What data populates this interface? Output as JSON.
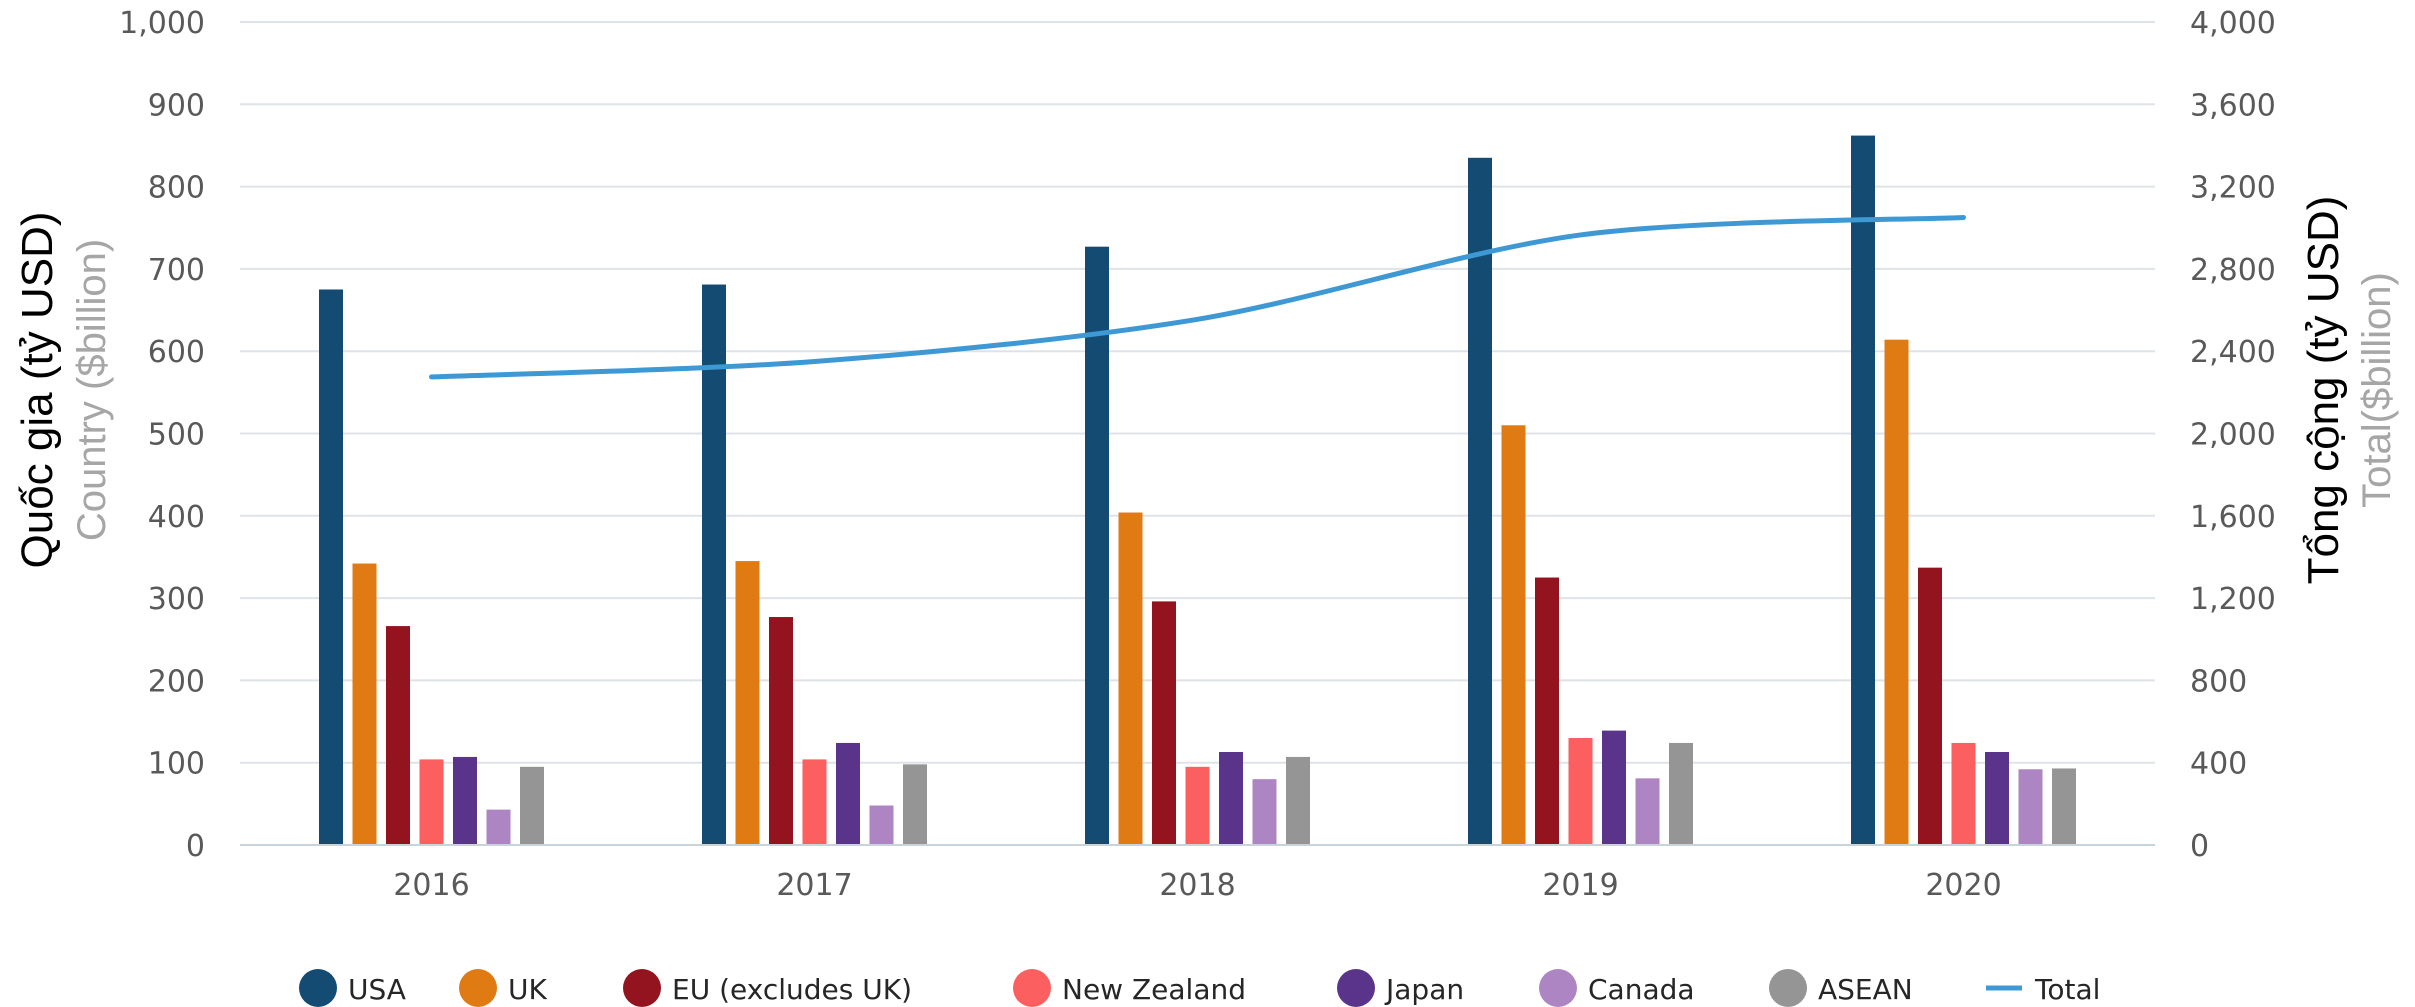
{
  "chart_data": {
    "type": "bar",
    "categories": [
      "2016",
      "2017",
      "2018",
      "2019",
      "2020"
    ],
    "series": [
      {
        "name": "USA",
        "color": "#134b73",
        "values": [
          675,
          681,
          727,
          835,
          862
        ]
      },
      {
        "name": "UK",
        "color": "#e07b14",
        "values": [
          342,
          345,
          404,
          510,
          614
        ]
      },
      {
        "name": "EU (excludes UK)",
        "color": "#93141e",
        "values": [
          266,
          277,
          296,
          325,
          337
        ]
      },
      {
        "name": "New Zealand",
        "color": "#fb5f5f",
        "values": [
          104,
          104,
          95,
          130,
          124
        ]
      },
      {
        "name": "Japan",
        "color": "#5a338a",
        "values": [
          107,
          124,
          113,
          139,
          113
        ]
      },
      {
        "name": "Canada",
        "color": "#ad85c2",
        "values": [
          43,
          48,
          80,
          81,
          92
        ]
      },
      {
        "name": "ASEAN",
        "color": "#959595",
        "values": [
          95,
          98,
          107,
          124,
          93
        ]
      }
    ],
    "line_series": {
      "name": "Total",
      "color": "#3d98d4",
      "axis": "right",
      "values": [
        2275,
        2350,
        2555,
        2965,
        3050
      ]
    },
    "ylim_left": [
      0,
      1000
    ],
    "ylim_right": [
      0,
      4000
    ],
    "y_ticks_left": [
      "0",
      "100",
      "200",
      "300",
      "400",
      "500",
      "600",
      "700",
      "800",
      "900",
      "1,000"
    ],
    "y_ticks_right": [
      "0",
      "400",
      "800",
      "1,200",
      "1,600",
      "2,000",
      "2,400",
      "2,800",
      "3,200",
      "3,600",
      "4,000"
    ],
    "ylabel_left": "Quốc gia (tỷ USD)",
    "ylabel_left_sub": "Country ($billion)",
    "ylabel_right": "Tổng cộng (tỷ USD)",
    "ylabel_right_sub": "Total($billion)",
    "legend_position": "bottom",
    "grid": true
  }
}
